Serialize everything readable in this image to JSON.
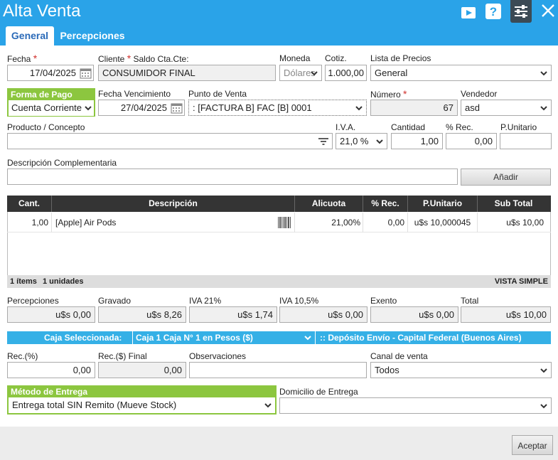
{
  "window": {
    "title": "Alta Venta"
  },
  "tabs": [
    {
      "label": "General"
    },
    {
      "label": "Percepciones"
    }
  ],
  "header": {
    "fecha": {
      "label": "Fecha",
      "value": "17/04/2025"
    },
    "cliente": {
      "label": "Cliente",
      "saldo_label": "Saldo Cta.Cte:",
      "value": "CONSUMIDOR FINAL"
    },
    "moneda": {
      "label": "Moneda",
      "value": "Dólares"
    },
    "cotiz": {
      "label": "Cotiz.",
      "value": "1.000,00"
    },
    "lista_precios": {
      "label": "Lista de Precios",
      "value": "General"
    },
    "forma_pago": {
      "label": "Forma de Pago",
      "value": "Cuenta Corriente"
    },
    "fecha_venc": {
      "label": "Fecha Vencimiento",
      "value": "27/04/2025"
    },
    "punto_venta": {
      "label": "Punto de Venta",
      "value": ": [FACTURA B] FAC [B] 0001"
    },
    "numero": {
      "label": "Número",
      "value": "67"
    },
    "vendedor": {
      "label": "Vendedor",
      "value": "asd"
    },
    "producto": {
      "label": "Producto / Concepto",
      "value": ""
    },
    "iva": {
      "label": "I.V.A.",
      "value": "21,0 %"
    },
    "cantidad": {
      "label": "Cantidad",
      "value": "1,00"
    },
    "rec": {
      "label": "% Rec.",
      "value": "0,00"
    },
    "punitario": {
      "label": "P.Unitario",
      "value": ""
    },
    "desc_comp": {
      "label": "Descripción Complementaria",
      "value": ""
    },
    "anadir_label": "Añadir"
  },
  "grid": {
    "columns": [
      "Cant.",
      "Descripción",
      "Alicuota",
      "% Rec.",
      "P.Unitario",
      "Sub Total"
    ],
    "rows": [
      {
        "cant": "1,00",
        "desc": "[Apple] Air Pods",
        "alicuota": "21,00%",
        "rec": "0,00",
        "punitario": "u$s 10,000045",
        "subtotal": "u$s 10,00"
      }
    ],
    "items_count": "1 ítems",
    "unidades": "1 unidades",
    "vista": "VISTA SIMPLE"
  },
  "totals": {
    "percepciones": {
      "label": "Percepciones",
      "value": "u$s  0,00"
    },
    "gravado": {
      "label": "Gravado",
      "value": "u$s  8,26"
    },
    "iva21": {
      "label": "IVA 21%",
      "value": "u$s  1,74"
    },
    "iva105": {
      "label": "IVA 10,5%",
      "value": "u$s  0,00"
    },
    "exento": {
      "label": "Exento",
      "value": "u$s  0,00"
    },
    "total": {
      "label": "Total",
      "value": "u$s  10,00"
    }
  },
  "caja": {
    "label": "Caja Seleccionada:",
    "value": "Caja 1 Caja N° 1 en Pesos ($)",
    "deposito": ":: Depósito Envío - Capital Federal (Buenos Aires)"
  },
  "bottom": {
    "rec_pct": {
      "label": "Rec.(%)",
      "value": "0,00"
    },
    "rec_final": {
      "label": "Rec.($) Final",
      "value": "0,00"
    },
    "observaciones": {
      "label": "Observaciones",
      "value": ""
    },
    "canal": {
      "label": "Canal de venta",
      "value": "Todos"
    },
    "metodo_entrega": {
      "label": "Método de Entrega",
      "value": "Entrega total SIN Remito (Mueve Stock)"
    },
    "domicilio": {
      "label": "Domicilio de Entrega",
      "value": ""
    }
  },
  "footer": {
    "aceptar_label": "Aceptar"
  },
  "colors": {
    "accent": "#2aa3e8",
    "green": "#8cc63f",
    "header_dark": "#343434"
  }
}
